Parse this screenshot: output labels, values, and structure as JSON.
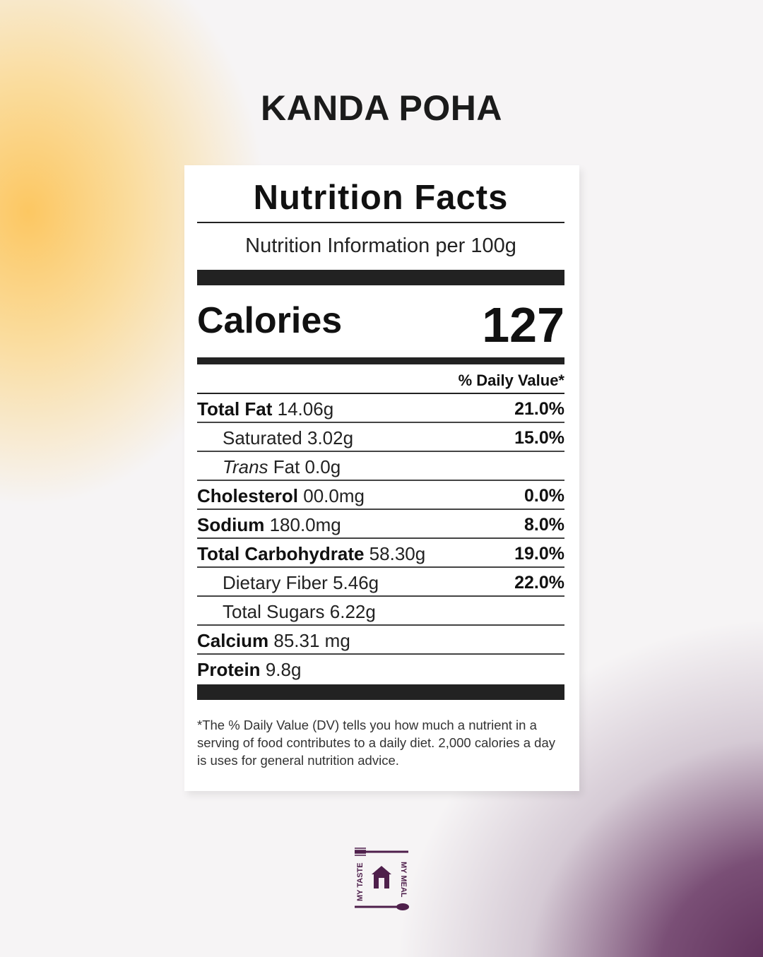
{
  "title": "KANDA POHA",
  "label": {
    "heading": "Nutrition Facts",
    "serving": "Nutrition Information per 100g",
    "calories_label": "Calories",
    "calories_value": "127",
    "dv_header": "% Daily Value*",
    "rows": [
      {
        "name": "Total Fat",
        "amount": "14.06g",
        "dv": "21.0%",
        "bold": true,
        "indent": 0
      },
      {
        "name": "Saturated",
        "amount": "3.02g",
        "dv": "15.0%",
        "bold": false,
        "indent": 1
      },
      {
        "name": "Trans",
        "amount": "Fat 0.0g",
        "dv": "",
        "bold": false,
        "indent": 1
      },
      {
        "name": "Cholesterol",
        "amount": "00.0mg",
        "dv": "0.0%",
        "bold": true,
        "indent": 0
      },
      {
        "name": "Sodium",
        "amount": "180.0mg",
        "dv": "8.0%",
        "bold": true,
        "indent": 0
      },
      {
        "name": "Total Carbohydrate",
        "amount": "58.30g",
        "dv": "19.0%",
        "bold": true,
        "indent": 0
      },
      {
        "name": "Dietary Fiber",
        "amount": "5.46g",
        "dv": "22.0%",
        "bold": false,
        "indent": 1
      },
      {
        "name": "Total Sugars",
        "amount": "6.22g",
        "dv": "",
        "bold": false,
        "indent": 1
      },
      {
        "name": "Calcium",
        "amount": "85.31 mg",
        "dv": "",
        "bold": true,
        "indent": 0
      },
      {
        "name": "Protein",
        "amount": "9.8g",
        "dv": "",
        "bold": true,
        "indent": 0
      }
    ],
    "footnote": "*The % Daily Value (DV) tells you how much a nutrient in a serving of food contributes to a daily diet. 2,000 calories a day is uses for general nutrition advice."
  },
  "logo": {
    "left_text": "MY TASTE",
    "right_text": "MY MEAL",
    "color": "#4e1f4b"
  }
}
